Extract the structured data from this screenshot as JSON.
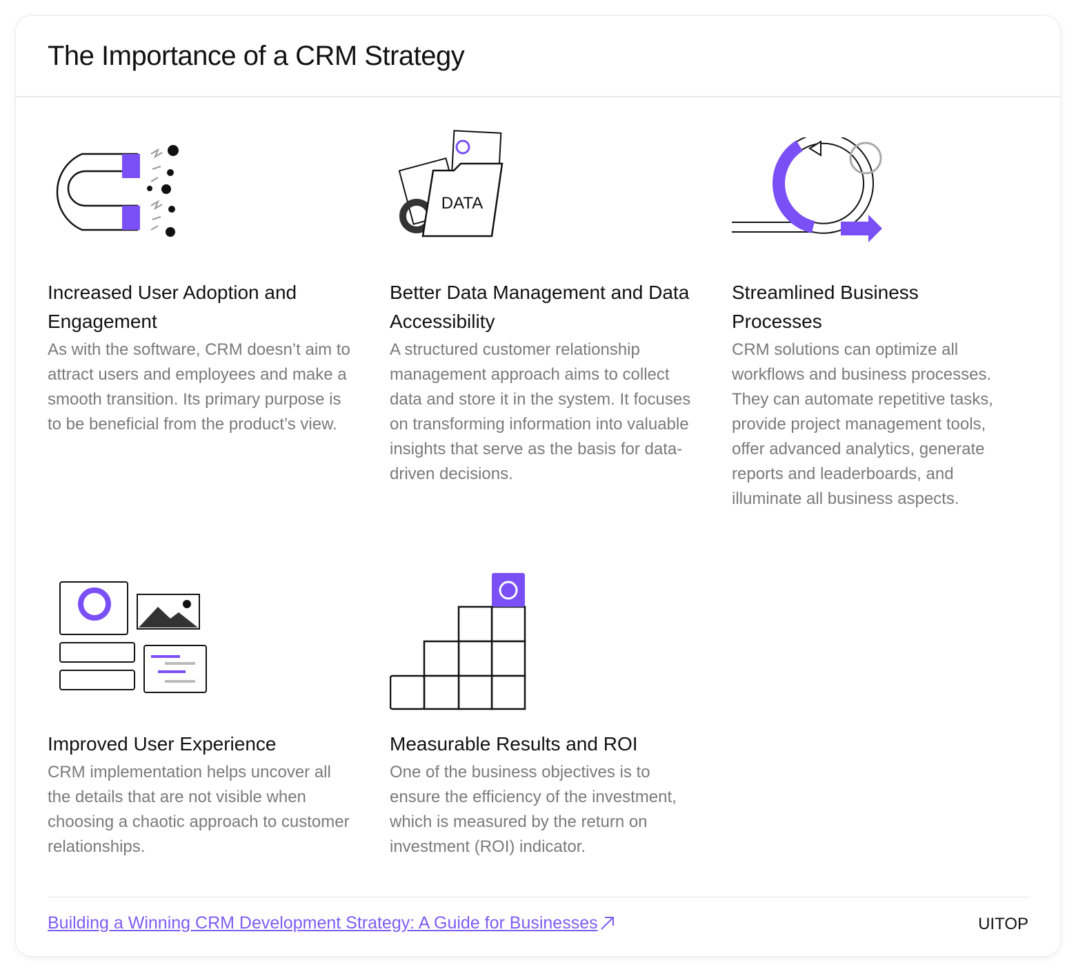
{
  "header": {
    "title": "The Importance of a CRM Strategy"
  },
  "items": [
    {
      "title": "Increased User Adoption and Engagement",
      "text": "As with the software, CRM doesn’t aim to attract users and employees and make a smooth transition. Its primary purpose is to be beneficial from the product’s view."
    },
    {
      "title": "Better Data Management and Data Accessibility",
      "text": "A structured customer relationship management approach aims to collect data and store it in the system. It focuses on transforming information into valuable insights that serve as the basis for data-driven decisions.",
      "icon_label": "DATA"
    },
    {
      "title": "Streamlined Business Processes",
      "text": "CRM solutions can optimize all workflows and business processes. They can automate repetitive tasks, provide project management tools, offer advanced analytics, generate reports and leaderboards, and illuminate all business aspects."
    },
    {
      "title": "Improved User Experience",
      "text": "CRM implementation helps uncover all the details that are not visible when choosing a chaotic approach to customer relationships."
    },
    {
      "title": "Measurable Results and ROI",
      "text": "One of the business objectives is to ensure the efficiency of the investment, which is measured by the return on investment (ROI) indicator."
    }
  ],
  "footer": {
    "link": "Building a Winning CRM Development Strategy: A Guide for Businesses",
    "brand": "UITOP"
  }
}
